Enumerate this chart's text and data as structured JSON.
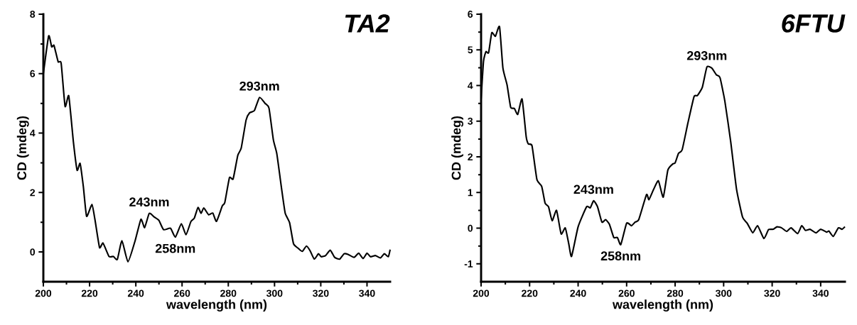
{
  "chart_data": [
    {
      "type": "line",
      "title": "TA2",
      "xlabel": "wavelength (nm)",
      "ylabel": "CD (mdeg)",
      "xlim": [
        200,
        350
      ],
      "ylim": [
        -1,
        8
      ],
      "xticks": [
        200,
        220,
        240,
        260,
        280,
        300,
        320,
        340
      ],
      "yticks": [
        0,
        2,
        4,
        6,
        8
      ],
      "grid": false,
      "marker": "none",
      "line_style": "solid",
      "annotations": [
        {
          "text": "243nm",
          "x": 245.8,
          "y": 1.3
        },
        {
          "text": "258nm",
          "x": 257.1,
          "y": 0.5
        },
        {
          "text": "293nm",
          "x": 293.5,
          "y": 5.2
        }
      ],
      "series": [
        {
          "color": "#000000",
          "x": [
            200,
            202.3,
            203.6,
            204.6,
            206.4,
            207.7,
            209.4,
            211,
            213,
            214.6,
            215.9,
            217.3,
            218.7,
            221,
            222.3,
            224.3,
            225.8,
            228.4,
            230.3,
            232,
            234,
            236.6,
            239.7,
            242.2,
            243.8,
            245.8,
            247.9,
            250,
            252,
            255,
            257.1,
            259.7,
            261.7,
            263.8,
            265.3,
            266.9,
            268.2,
            269.4,
            271.5,
            273.3,
            274.9,
            277.4,
            278.5,
            280.5,
            282.1,
            284.1,
            285.6,
            287.7,
            289.2,
            291.3,
            293.5,
            295.9,
            297.6,
            299.5,
            301,
            303.1,
            304.6,
            306.5,
            308.2,
            310.3,
            312,
            313.8,
            315.4,
            317.2,
            319,
            320.2,
            322.1,
            324.1,
            326,
            328.2,
            330.1,
            331.8,
            334.4,
            336.4,
            338.3,
            340,
            341.5,
            343.6,
            345.8,
            347.5,
            349.2,
            350
          ],
          "values": [
            6.0,
            7.27,
            6.9,
            6.95,
            6.4,
            6.35,
            4.9,
            5.25,
            3.7,
            2.75,
            2.98,
            2.2,
            1.2,
            1.6,
            1.1,
            0.15,
            0.3,
            -0.15,
            -0.15,
            -0.25,
            0.38,
            -0.33,
            0.38,
            1.1,
            0.82,
            1.3,
            1.18,
            1.06,
            0.75,
            0.8,
            0.5,
            0.95,
            0.58,
            1.02,
            1.14,
            1.5,
            1.3,
            1.48,
            1.25,
            1.31,
            1.03,
            1.55,
            1.67,
            2.5,
            2.46,
            3.25,
            3.5,
            4.44,
            4.68,
            4.76,
            5.2,
            5.0,
            4.84,
            3.77,
            3.3,
            2.1,
            1.31,
            0.99,
            0.28,
            0.12,
            0.02,
            0.2,
            0.04,
            -0.24,
            -0.06,
            -0.16,
            -0.12,
            0.06,
            -0.18,
            -0.24,
            -0.06,
            -0.08,
            -0.18,
            -0.04,
            -0.22,
            -0.04,
            -0.16,
            -0.12,
            -0.2,
            -0.06,
            -0.16,
            0.08
          ]
        }
      ]
    },
    {
      "type": "line",
      "title": "6FTU",
      "xlabel": "wavelength (nm)",
      "ylabel": "CD (mdeg)",
      "xlim": [
        200,
        350
      ],
      "ylim": [
        -1.5,
        6
      ],
      "xticks": [
        200,
        220,
        240,
        260,
        280,
        300,
        320,
        340
      ],
      "yticks": [
        -1,
        0,
        1,
        2,
        3,
        4,
        5,
        6
      ],
      "grid": false,
      "marker": "none",
      "line_style": "solid",
      "annotations": [
        {
          "text": "243nm",
          "x": 246.4,
          "y": 0.77
        },
        {
          "text": "258nm",
          "x": 257.6,
          "y": -0.46
        },
        {
          "text": "293nm",
          "x": 293.1,
          "y": 4.52
        }
      ],
      "series": [
        {
          "color": "#000000",
          "x": [
            200,
            201,
            202,
            203.1,
            204.4,
            205.9,
            207.6,
            209,
            210.7,
            212.2,
            213.7,
            215.1,
            216.9,
            218.6,
            219.5,
            221,
            223,
            225,
            226.4,
            227.8,
            229.3,
            231.1,
            233,
            234.7,
            236.1,
            237.3,
            240,
            243.5,
            245,
            246.4,
            248,
            249.8,
            251.3,
            252.9,
            254.7,
            256.2,
            257.6,
            260,
            262,
            263.5,
            265,
            268.2,
            269.2,
            271.2,
            273.1,
            275.1,
            277,
            279,
            280,
            281.4,
            282.9,
            285.3,
            287.8,
            289.2,
            291.2,
            293.1,
            295.1,
            297,
            298.5,
            300.5,
            302.9,
            305.3,
            307.8,
            309.7,
            312,
            314,
            316.6,
            318.5,
            320.5,
            322,
            323.9,
            326,
            327.8,
            330.5,
            332.2,
            333.7,
            335.6,
            338.1,
            340,
            342.5,
            343.4,
            345.2,
            347.3,
            348.8,
            350
          ],
          "values": [
            3.62,
            4.68,
            4.95,
            4.92,
            5.48,
            5.38,
            5.65,
            4.49,
            4.02,
            3.39,
            3.36,
            3.19,
            3.62,
            2.56,
            2.36,
            2.31,
            1.37,
            1.17,
            0.7,
            0.6,
            0.21,
            0.5,
            -0.16,
            0.01,
            -0.42,
            -0.79,
            0.04,
            0.6,
            0.57,
            0.77,
            0.6,
            0.17,
            0.24,
            0.11,
            -0.26,
            -0.26,
            -0.46,
            0.14,
            0.07,
            0.17,
            0.24,
            0.94,
            0.8,
            1.1,
            1.33,
            0.87,
            1.63,
            1.8,
            1.83,
            2.1,
            2.2,
            2.96,
            3.69,
            3.72,
            3.95,
            4.52,
            4.49,
            4.3,
            4.22,
            3.56,
            2.43,
            1.1,
            0.31,
            0.14,
            -0.13,
            0.07,
            -0.29,
            -0.04,
            -0.03,
            0.04,
            0.01,
            -0.09,
            0.01,
            -0.15,
            0.07,
            -0.06,
            -0.03,
            -0.13,
            -0.03,
            -0.11,
            -0.08,
            -0.23,
            0.01,
            -0.03,
            0.04
          ]
        }
      ]
    }
  ]
}
